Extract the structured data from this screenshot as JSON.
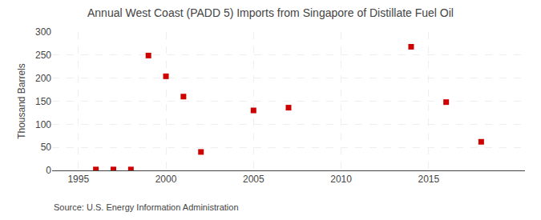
{
  "chart_data": {
    "type": "scatter",
    "title": "Annual West Coast (PADD 5) Imports from Singapore of Distillate Fuel Oil",
    "y_label": "Thousand Barrels",
    "annotations": [
      "Source: U.S. Energy Information Administration"
    ],
    "x": [
      1996,
      1997,
      1998,
      1999,
      2000,
      2001,
      2002,
      2005,
      2007,
      2014,
      2016,
      2018
    ],
    "values": [
      2,
      2,
      2,
      249,
      204,
      160,
      40,
      130,
      136,
      268,
      148,
      62
    ],
    "color": "#cc0000",
    "marker": "square",
    "xlim": [
      1993.5,
      2020.5
    ],
    "ylim": [
      0,
      300
    ],
    "xticks": [
      1995,
      2000,
      2005,
      2010,
      2015
    ],
    "yticks": [
      0,
      50,
      100,
      150,
      200,
      250,
      300
    ],
    "grid": true
  }
}
